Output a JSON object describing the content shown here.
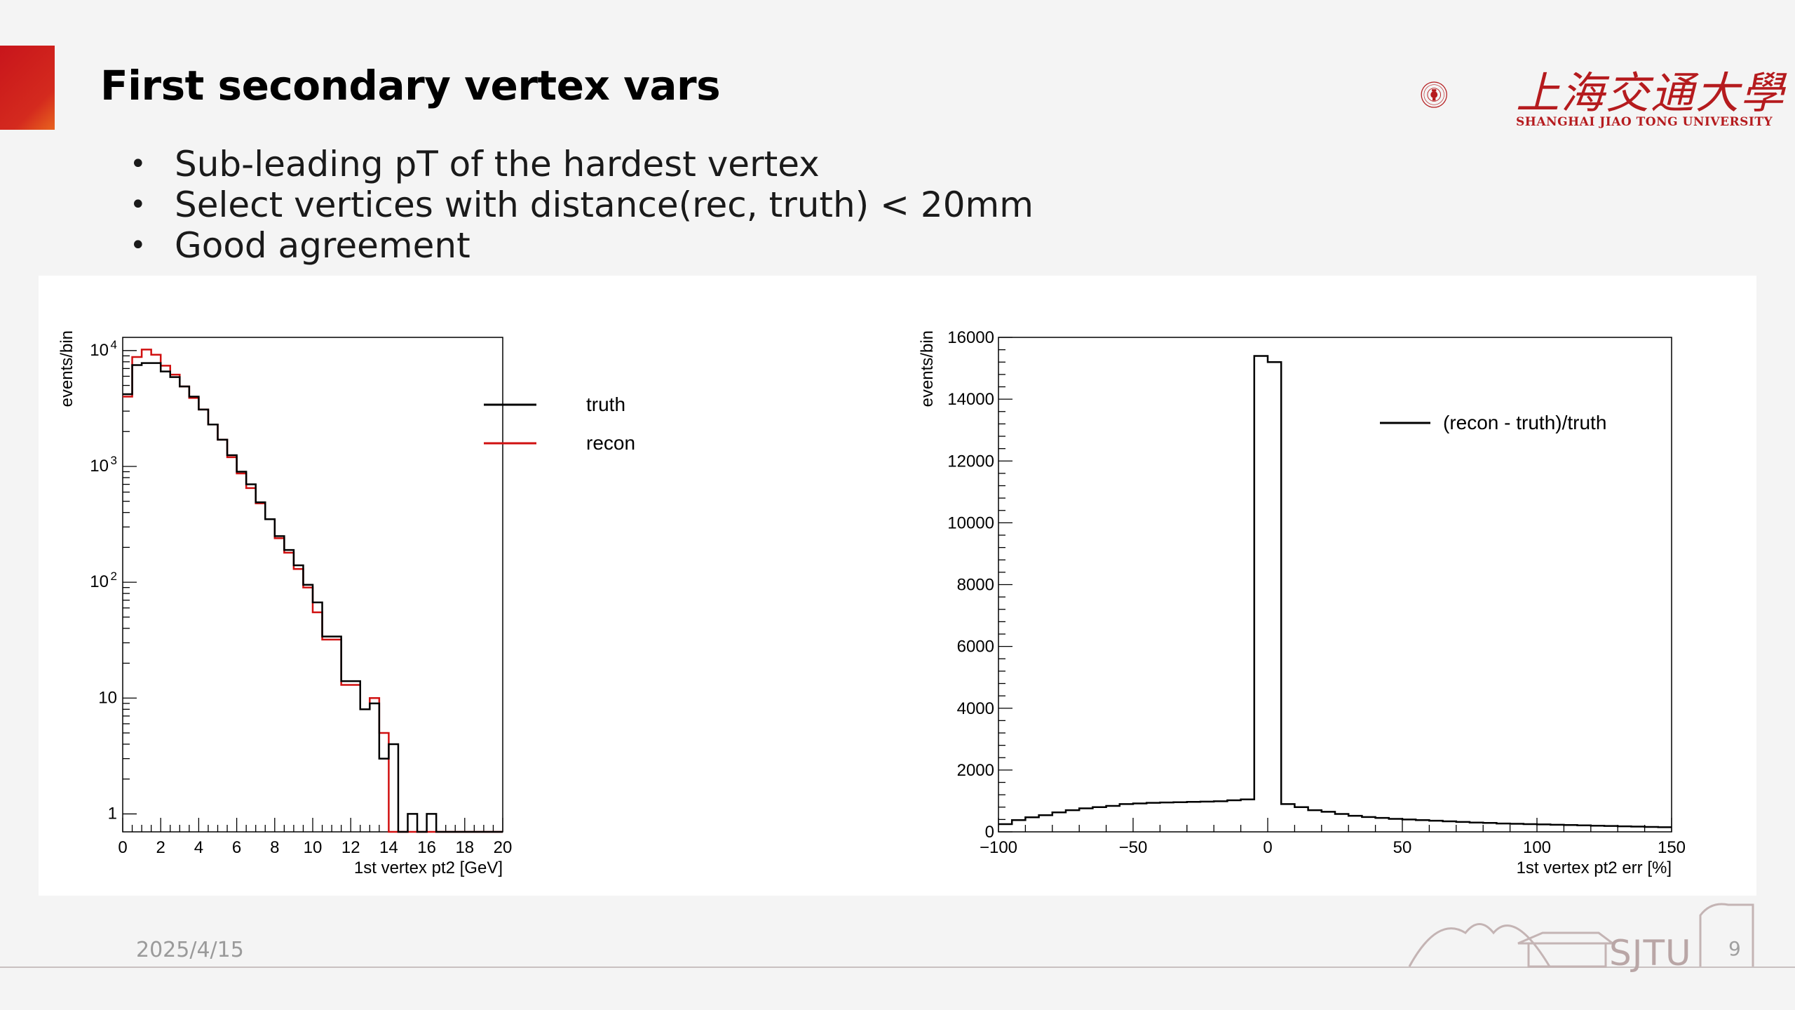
{
  "slide": {
    "title": "First secondary vertex vars",
    "bullets": [
      "Sub-leading pT of the hardest vertex",
      "Select vertices with distance(rec, truth) < 20mm",
      "Good agreement"
    ],
    "date": "2025/4/15",
    "page_number": "9",
    "logo_cn": "上海交通大學",
    "logo_en": "SHANGHAI JIAO TONG UNIVERSITY",
    "footer_mark": "SJTU",
    "brand_color": "#c8151b"
  },
  "chart_data": [
    {
      "type": "histogram",
      "xlabel": "1st vertex pt2 [GeV]",
      "ylabel": "events/bin",
      "xlim": [
        0,
        20
      ],
      "ylim": [
        0.7,
        13000
      ],
      "yscale": "log",
      "x_ticks": [
        "0",
        "2",
        "4",
        "6",
        "8",
        "10",
        "12",
        "14",
        "16",
        "18",
        "20"
      ],
      "y_ticks": [
        {
          "value": 1,
          "label": "1",
          "sup": ""
        },
        {
          "value": 10,
          "label": "10",
          "sup": ""
        },
        {
          "value": 100,
          "label": "10",
          "sup": "2"
        },
        {
          "value": 1000,
          "label": "10",
          "sup": "3"
        },
        {
          "value": 10000,
          "label": "10",
          "sup": "4"
        }
      ],
      "legend_position": "top-right",
      "bin_edges": [
        0,
        0.5,
        1,
        1.5,
        2,
        2.5,
        3,
        3.5,
        4,
        4.5,
        5,
        5.5,
        6,
        6.5,
        7,
        7.5,
        8,
        8.5,
        9,
        9.5,
        10,
        10.5,
        11,
        11.5,
        12,
        12.5,
        13,
        13.5,
        14,
        14.5,
        15,
        15.5,
        16,
        16.5,
        17,
        17.5,
        18,
        18.5,
        19,
        19.5,
        20
      ],
      "series": [
        {
          "name": "truth",
          "color": "#000000",
          "values": [
            4200,
            7500,
            7800,
            7800,
            6600,
            5900,
            4900,
            4000,
            3100,
            2300,
            1700,
            1250,
            900,
            700,
            490,
            350,
            250,
            190,
            140,
            95,
            67,
            34,
            34,
            14,
            14,
            8,
            9,
            3,
            4,
            0,
            1,
            0,
            1,
            0,
            0,
            0,
            0,
            0,
            0,
            0
          ]
        },
        {
          "name": "recon",
          "color": "#d01010",
          "values": [
            4000,
            8800,
            10200,
            9200,
            7400,
            6200,
            4900,
            3900,
            3100,
            2300,
            1700,
            1200,
            870,
            650,
            480,
            350,
            240,
            180,
            130,
            90,
            55,
            32,
            32,
            13,
            13,
            8,
            10,
            5,
            0,
            0,
            0,
            0,
            0,
            0,
            0,
            0,
            0,
            0,
            0,
            0
          ]
        }
      ]
    },
    {
      "type": "histogram",
      "xlabel": "1st vertex pt2 err [%]",
      "ylabel": "events/bin",
      "xlim": [
        -100,
        150
      ],
      "ylim": [
        0,
        16000
      ],
      "x_ticks": [
        "−100",
        "−50",
        "0",
        "50",
        "100",
        "150"
      ],
      "y_ticks": [
        "0",
        "2000",
        "4000",
        "6000",
        "8000",
        "10000",
        "12000",
        "14000",
        "16000"
      ],
      "legend_position": "top-right",
      "bin_edges": [
        -100,
        -95,
        -90,
        -85,
        -80,
        -75,
        -70,
        -65,
        -60,
        -55,
        -50,
        -45,
        -40,
        -35,
        -30,
        -25,
        -20,
        -15,
        -10,
        -5,
        0,
        5,
        10,
        15,
        20,
        25,
        30,
        35,
        40,
        45,
        50,
        55,
        60,
        65,
        70,
        75,
        80,
        85,
        90,
        95,
        100,
        105,
        110,
        115,
        120,
        125,
        130,
        135,
        140,
        145,
        150
      ],
      "series": [
        {
          "name": "(recon - truth)/truth",
          "color": "#000000",
          "values": [
            250,
            380,
            470,
            540,
            630,
            700,
            760,
            800,
            840,
            900,
            920,
            940,
            950,
            960,
            970,
            980,
            990,
            1020,
            1050,
            15400,
            15200,
            900,
            800,
            700,
            650,
            580,
            520,
            480,
            450,
            420,
            400,
            380,
            360,
            340,
            320,
            300,
            290,
            270,
            260,
            250,
            240,
            230,
            220,
            210,
            200,
            190,
            180,
            170,
            160,
            150
          ]
        }
      ]
    }
  ]
}
